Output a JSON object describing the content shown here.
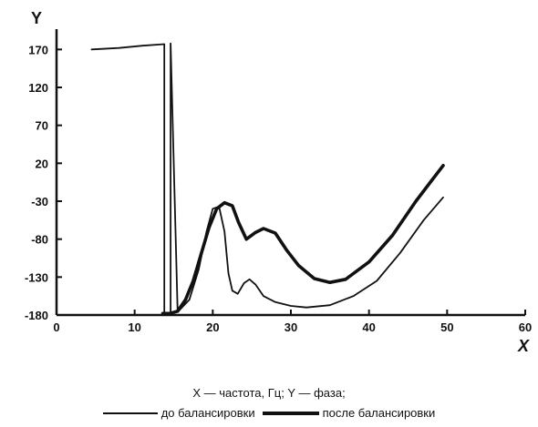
{
  "chart_data": {
    "type": "line",
    "xlabel": "X",
    "ylabel": "Y",
    "xlim": [
      0,
      60
    ],
    "ylim": [
      -180,
      180
    ],
    "x_ticks": [
      0,
      10,
      20,
      30,
      40,
      50,
      60
    ],
    "y_ticks": [
      170,
      120,
      70,
      20,
      -30,
      -80,
      -130,
      -180
    ],
    "y_tick_labels": [
      "170",
      "120",
      "70",
      "20",
      "-30",
      "-80",
      "-130",
      "-180"
    ],
    "grid": false,
    "legend_position": "bottom",
    "caption": "X — частота, Гц; Y — фаза;",
    "series": [
      {
        "name": "до балансировки",
        "style": "thin",
        "x": [
          4.5,
          8,
          11,
          13.8,
          13.8,
          14.6,
          14.6,
          15.5,
          17,
          18.2,
          19.2,
          20,
          20.8,
          21.5,
          22,
          22.5,
          23.2,
          24,
          24.7,
          25.5,
          26.5,
          28,
          30,
          32,
          35,
          38,
          41,
          44,
          47,
          49.5
        ],
        "y": [
          170,
          172,
          175,
          177,
          -177,
          -177,
          178,
          -176,
          -160,
          -120,
          -70,
          -40,
          -37,
          -70,
          -125,
          -148,
          -152,
          -138,
          -133,
          -140,
          -155,
          -163,
          -168,
          -170,
          -167,
          -155,
          -135,
          -98,
          -55,
          -25
        ]
      },
      {
        "name": "после балансировки",
        "style": "thick",
        "x": [
          13.6,
          14.5,
          15.5,
          16.5,
          17.5,
          18.5,
          19.5,
          20.5,
          21.5,
          22.5,
          23.3,
          24.3,
          25.5,
          26.5,
          28,
          29.5,
          31,
          33,
          35,
          37,
          40,
          43,
          46,
          48,
          49.5
        ],
        "y": [
          -178,
          -178,
          -175,
          -160,
          -135,
          -100,
          -65,
          -40,
          -32,
          -36,
          -58,
          -80,
          -71,
          -66,
          -72,
          -95,
          -115,
          -132,
          -137,
          -133,
          -110,
          -75,
          -30,
          -3,
          17
        ]
      }
    ]
  }
}
